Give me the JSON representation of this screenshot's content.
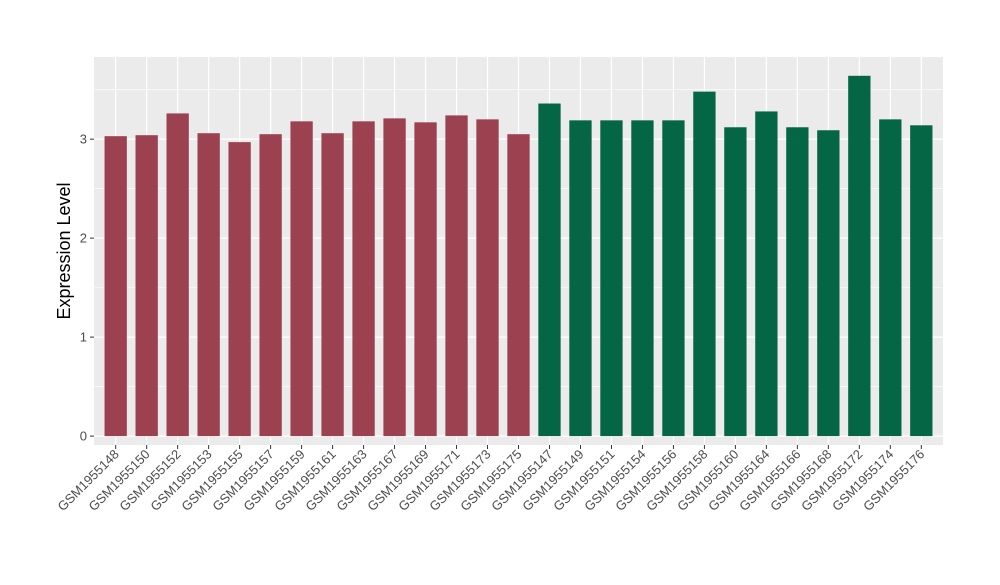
{
  "chart_data": {
    "type": "bar",
    "title": "",
    "xlabel": "",
    "ylabel": "Expression Level",
    "ylim": [
      -0.09,
      3.83
    ],
    "yticks": [
      0,
      1,
      2,
      3
    ],
    "grid": true,
    "legend": "none",
    "categories": [
      "GSM1955148",
      "GSM1955150",
      "GSM1955152",
      "GSM1955153",
      "GSM1955155",
      "GSM1955157",
      "GSM1955159",
      "GSM1955161",
      "GSM1955163",
      "GSM1955167",
      "GSM1955169",
      "GSM1955171",
      "GSM1955173",
      "GSM1955175",
      "GSM1955147",
      "GSM1955149",
      "GSM1955151",
      "GSM1955154",
      "GSM1955156",
      "GSM1955158",
      "GSM1955160",
      "GSM1955164",
      "GSM1955166",
      "GSM1955168",
      "GSM1955172",
      "GSM1955174",
      "GSM1955176"
    ],
    "values": [
      3.03,
      3.04,
      3.26,
      3.06,
      2.97,
      3.05,
      3.18,
      3.06,
      3.18,
      3.21,
      3.17,
      3.24,
      3.2,
      3.05,
      3.36,
      3.19,
      3.19,
      3.19,
      3.19,
      3.48,
      3.12,
      3.28,
      3.12,
      3.09,
      3.64,
      3.2,
      3.14
    ],
    "bar_colors": [
      "#9b4150",
      "#9b4150",
      "#9b4150",
      "#9b4150",
      "#9b4150",
      "#9b4150",
      "#9b4150",
      "#9b4150",
      "#9b4150",
      "#9b4150",
      "#9b4150",
      "#9b4150",
      "#9b4150",
      "#9b4150",
      "#046644",
      "#046644",
      "#046644",
      "#046644",
      "#046644",
      "#046644",
      "#046644",
      "#046644",
      "#046644",
      "#046644",
      "#046644",
      "#046644",
      "#046644"
    ],
    "panel_color": "#ebebeb",
    "grid_color": "#ffffff"
  }
}
